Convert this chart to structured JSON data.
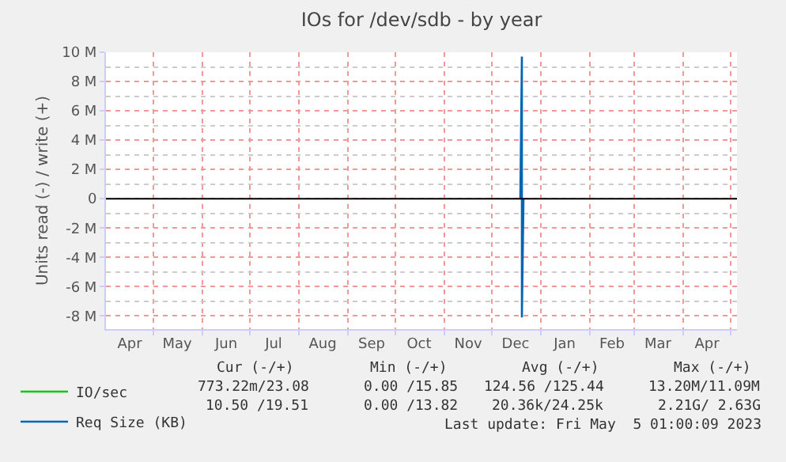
{
  "chart_data": {
    "type": "line",
    "title": "IOs for /dev/sdb - by year",
    "ylabel": "Units read (-) / write (+)",
    "series": [
      {
        "name": "IO/sec",
        "color": "#00cc00"
      },
      {
        "name": "Req Size (KB)",
        "color": "#0066b3",
        "x": [
          "2022-12-19",
          "2022-12-20",
          "2022-12-20",
          "2022-12-21"
        ],
        "values": [
          0,
          9700000,
          -8100000,
          0
        ]
      }
    ],
    "xlim": [
      "2022-04-01",
      "2023-05-05"
    ],
    "xticks": [
      {
        "value": "2022-04-16",
        "label": "Apr"
      },
      {
        "value": "2022-05-16",
        "label": "May"
      },
      {
        "value": "2022-06-16",
        "label": "Jun"
      },
      {
        "value": "2022-07-16",
        "label": "Jul"
      },
      {
        "value": "2022-08-16",
        "label": "Aug"
      },
      {
        "value": "2022-09-16",
        "label": "Sep"
      },
      {
        "value": "2022-10-16",
        "label": "Oct"
      },
      {
        "value": "2022-11-16",
        "label": "Nov"
      },
      {
        "value": "2022-12-16",
        "label": "Dec"
      },
      {
        "value": "2023-01-16",
        "label": "Jan"
      },
      {
        "value": "2023-02-15",
        "label": "Feb"
      },
      {
        "value": "2023-03-16",
        "label": "Mar"
      },
      {
        "value": "2023-04-16",
        "label": "Apr"
      },
      {
        "value": "2022-05-01",
        "label": null
      },
      {
        "value": "2022-06-01",
        "label": null
      },
      {
        "value": "2022-07-01",
        "label": null
      },
      {
        "value": "2022-08-01",
        "label": null
      },
      {
        "value": "2022-09-01",
        "label": null
      },
      {
        "value": "2022-10-01",
        "label": null
      },
      {
        "value": "2022-11-01",
        "label": null
      },
      {
        "value": "2022-12-01",
        "label": null
      },
      {
        "value": "2023-01-01",
        "label": null
      },
      {
        "value": "2023-02-01",
        "label": null
      },
      {
        "value": "2023-03-01",
        "label": null
      },
      {
        "value": "2023-04-01",
        "label": null
      },
      {
        "value": "2023-05-01",
        "label": null
      }
    ],
    "ylim": [
      -8900000,
      10000000
    ],
    "yticks": [
      {
        "value": -8000000,
        "label": "-8 M"
      },
      {
        "value": -6000000,
        "label": "-6 M"
      },
      {
        "value": -4000000,
        "label": "-4 M"
      },
      {
        "value": -2000000,
        "label": "-2 M"
      },
      0,
      {
        "value": 2000000,
        "label": "2 M"
      },
      {
        "value": 4000000,
        "label": "4 M"
      },
      {
        "value": 6000000,
        "label": "6 M"
      },
      {
        "value": 8000000,
        "label": "8 M"
      },
      {
        "value": 10000000,
        "label": "10 M"
      },
      {
        "value": -7000000,
        "label": null
      },
      {
        "value": -5000000,
        "label": null
      },
      {
        "value": -3000000,
        "label": null
      },
      {
        "value": -1000000,
        "label": null
      },
      {
        "value": 1000000,
        "label": null
      },
      {
        "value": 3000000,
        "label": null
      },
      {
        "value": 5000000,
        "label": null
      },
      {
        "value": 7000000,
        "label": null
      },
      {
        "value": 9000000,
        "label": null
      }
    ],
    "ref_lines": [
      {
        "axis": "y",
        "value": 0,
        "color": "#000000"
      }
    ],
    "grid": true,
    "legend": "bottom left",
    "marker": "none",
    "line_style": "solid",
    "annotations": [
      "Cur (-/+)",
      "Min (-/+)",
      "Avg (-/+)",
      "Max (-/+)",
      "773.22m/23.08",
      "0.00 /15.85",
      "124.56 /125.44",
      "13.20M/11.09M",
      "10.50 /19.51",
      "0.00 /13.82",
      "20.36k/24.25k",
      "2.21G/ 2.63G",
      "Last update: Fri May  5 01:00:09 2023"
    ]
  }
}
